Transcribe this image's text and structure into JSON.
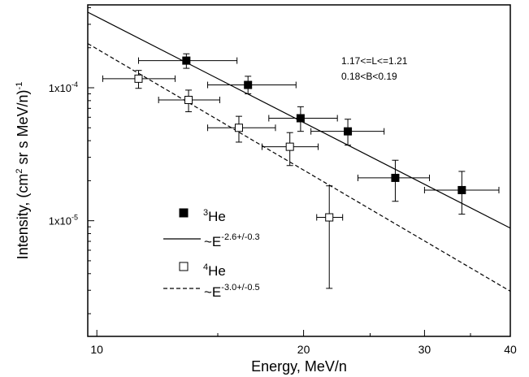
{
  "chart_data": {
    "type": "scatter",
    "xlabel": "Energy, MeV/n",
    "ylabel": {
      "pre": "Intensity, (cm",
      "sup1": "2",
      "mid": " sr s MeV/n)",
      "sup2": "-1"
    },
    "x_scale": "log",
    "y_scale": "log",
    "xlim": [
      9.7,
      40
    ],
    "ylim": [
      1.35e-06,
      0.00042
    ],
    "x_ticks": [
      {
        "value": 10,
        "label": "10"
      },
      {
        "value": 20,
        "label": "20"
      },
      {
        "value": 30,
        "label": "30"
      },
      {
        "value": 40,
        "label": "40"
      }
    ],
    "y_ticks": [
      {
        "value": 1e-05,
        "label_base": "1x10",
        "label_exp": "-5"
      },
      {
        "value": 0.0001,
        "label_base": "1x10",
        "label_exp": "-4"
      }
    ],
    "annotation_lines": [
      "1.17<=L<=1.21",
      "0.18<B<0.19"
    ],
    "series": [
      {
        "key": "he3",
        "marker": "filled-square",
        "color": "#000000",
        "points": [
          {
            "x": 13.5,
            "y": 0.00016,
            "xerr": [
              11.5,
              16.0
            ],
            "yerr": [
              0.00014,
              0.00018
            ]
          },
          {
            "x": 16.6,
            "y": 0.000105,
            "xerr": [
              14.5,
              19.5
            ],
            "yerr": [
              9e-05,
              0.000122
            ]
          },
          {
            "x": 19.8,
            "y": 5.9e-05,
            "xerr": [
              17.8,
              22.4
            ],
            "yerr": [
              4.7e-05,
              7.2e-05
            ]
          },
          {
            "x": 23.2,
            "y": 4.7e-05,
            "xerr": [
              20.5,
              26.2
            ],
            "yerr": [
              3.7e-05,
              5.8e-05
            ]
          },
          {
            "x": 27.2,
            "y": 2.1e-05,
            "xerr": [
              24.0,
              30.5
            ],
            "yerr": [
              1.4e-05,
              2.85e-05
            ]
          },
          {
            "x": 34.0,
            "y": 1.7e-05,
            "xerr": [
              30.0,
              38.5
            ],
            "yerr": [
              1.12e-05,
              2.35e-05
            ]
          }
        ]
      },
      {
        "key": "he4",
        "marker": "open-square",
        "color": "#000000",
        "points": [
          {
            "x": 11.5,
            "y": 0.000117,
            "xerr": [
              10.2,
              13.0
            ],
            "yerr": [
              9.9e-05,
              0.000135
            ]
          },
          {
            "x": 13.6,
            "y": 8.1e-05,
            "xerr": [
              12.3,
              15.1
            ],
            "yerr": [
              6.6e-05,
              9.6e-05
            ]
          },
          {
            "x": 16.1,
            "y": 5e-05,
            "xerr": [
              14.5,
              18.2
            ],
            "yerr": [
              3.9e-05,
              6.1e-05
            ]
          },
          {
            "x": 19.1,
            "y": 3.6e-05,
            "xerr": [
              17.4,
              21.0
            ],
            "yerr": [
              2.6e-05,
              4.6e-05
            ]
          },
          {
            "x": 21.8,
            "y": 1.06e-05,
            "xerr": [
              20.9,
              22.8
            ],
            "yerr": [
              3.1e-06,
              1.83e-05
            ]
          }
        ]
      }
    ],
    "fits": [
      {
        "key": "fit3",
        "style": "solid",
        "x_range": [
          9.7,
          40
        ],
        "y_range": [
          0.00037,
          8.8e-06
        ]
      },
      {
        "key": "fit4",
        "style": "dashed",
        "x_range": [
          9.7,
          40
        ],
        "y_range": [
          0.000215,
          2.95e-06
        ]
      }
    ],
    "legend": {
      "placement": "lower-left",
      "entries": [
        {
          "symbol": "filled-square",
          "label_sup": "3",
          "label_base": "He",
          "label_sup_after": ""
        },
        {
          "symbol": "solid-line",
          "label_sup": "",
          "label_base": "~E",
          "label_sup_after": "-2.6+/-0.3"
        },
        {
          "symbol": "open-square",
          "label_sup": "4",
          "label_base": "He",
          "label_sup_after": ""
        },
        {
          "symbol": "dashed-line",
          "label_sup": "",
          "label_base": "~E",
          "label_sup_after": "-3.0+/-0.5"
        }
      ]
    }
  }
}
